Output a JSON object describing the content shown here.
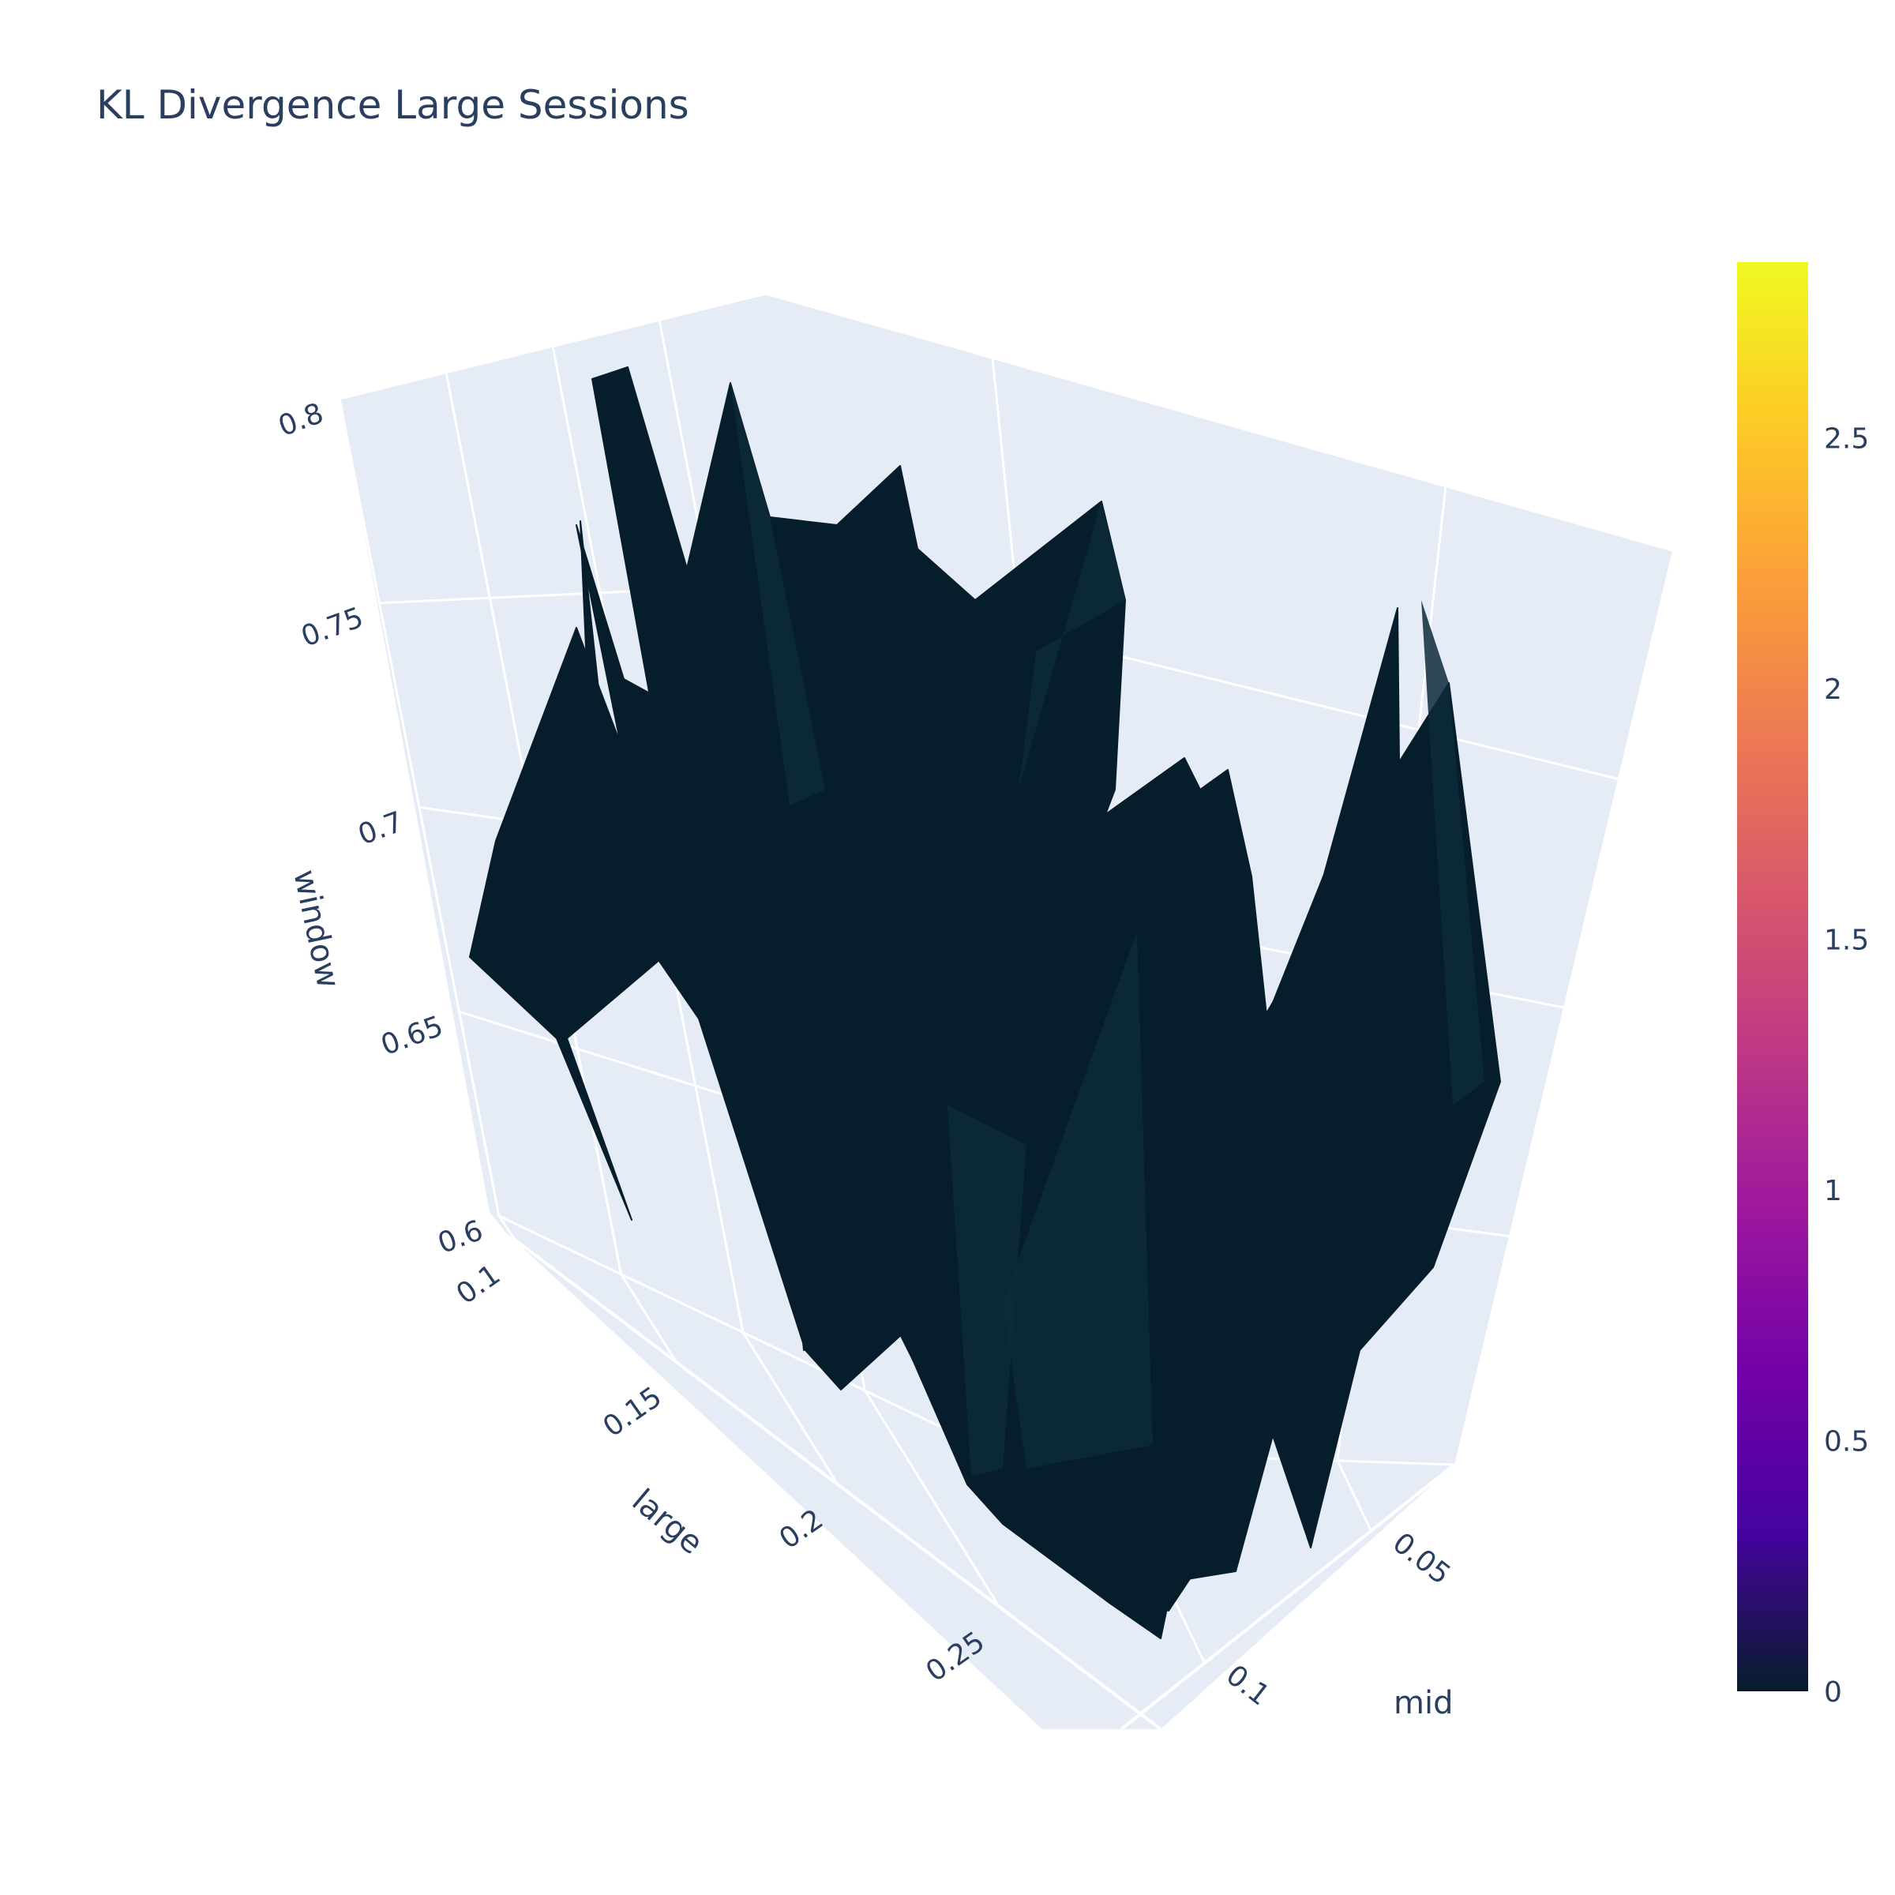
{
  "chart_data": {
    "type": "surface",
    "title": "KL Divergence Large Sessions",
    "axes": {
      "x": {
        "label": "mid",
        "ticks": [
          "0.05",
          "0.1"
        ],
        "tick_values": [
          0.05,
          0.1
        ],
        "range": [
          0.025,
          0.125
        ]
      },
      "y": {
        "label": "large",
        "ticks": [
          "0.1",
          "0.15",
          "0.2",
          "0.25"
        ],
        "tick_values": [
          0.1,
          0.15,
          0.2,
          0.25
        ],
        "range": [
          0.1,
          0.3
        ]
      },
      "z": {
        "label": "window",
        "ticks": [
          "0.6",
          "0.65",
          "0.7",
          "0.75",
          "0.8"
        ],
        "tick_values": [
          0.6,
          0.65,
          0.7,
          0.75,
          0.8
        ],
        "range": [
          0.6,
          0.8
        ]
      }
    },
    "colorbar": {
      "colorscale": "plasma",
      "colors": [
        "#0d0887",
        "#46039f",
        "#7201a8",
        "#9c179e",
        "#bd3786",
        "#d8576b",
        "#ed7953",
        "#fb9f3a",
        "#fdca26",
        "#f0f921"
      ],
      "low_color": "#061d2b",
      "ticks": [
        "0",
        "0.5",
        "1",
        "1.5",
        "2",
        "2.5"
      ],
      "tick_values": [
        0,
        0.5,
        1,
        1.5,
        2,
        2.5
      ],
      "range": [
        0,
        2.85
      ]
    },
    "surface_color": "#061d2b",
    "grid": true,
    "scene_background": "#e5ecf6",
    "gridline_color": "#ffffff"
  }
}
